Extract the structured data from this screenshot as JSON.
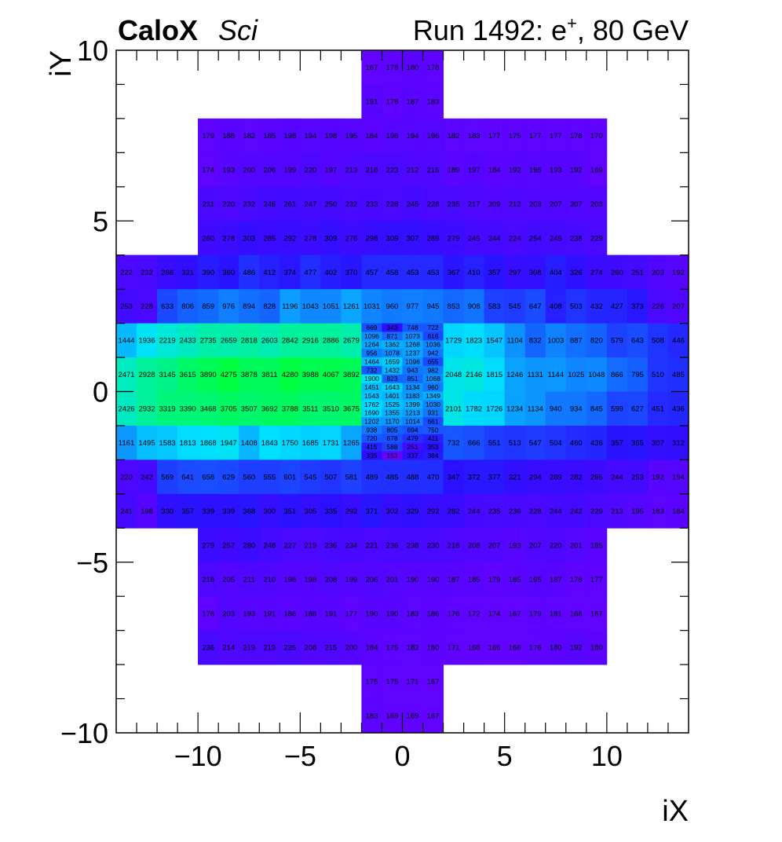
{
  "chart_data": {
    "type": "heatmap",
    "title_bold": "CaloX",
    "title_italic": "Sci",
    "run_prefix": "Run 1492: e",
    "run_superscript": "+",
    "run_suffix": ", 80 GeV",
    "xlabel": "iX",
    "ylabel": "iY",
    "xlim": [
      -14,
      14
    ],
    "ylim": [
      -10,
      10
    ],
    "xticks": [
      -10,
      -5,
      0,
      5,
      10
    ],
    "yticks": [
      -10,
      -5,
      0,
      5,
      10
    ],
    "xticklabels": [
      "−10",
      "−5",
      "0",
      "5",
      "10"
    ],
    "yticklabels": [
      "−10",
      "−5",
      "0",
      "5",
      "10"
    ],
    "colorscale": [
      "#6a00ff",
      "#2a10ff",
      "#1560ff",
      "#00e0ff",
      "#00ff40"
    ],
    "zlim": [
      150,
      4300
    ],
    "regions": [
      {
        "name": "top-arm",
        "x": [
          -2,
          2
        ],
        "y": [
          8,
          10
        ]
      },
      {
        "name": "bottom-arm",
        "x": [
          -2,
          2
        ],
        "y": [
          -10,
          -8
        ]
      },
      {
        "name": "upper-block",
        "x": [
          -10,
          10
        ],
        "y": [
          4,
          8
        ]
      },
      {
        "name": "lower-block",
        "x": [
          -10,
          10
        ],
        "y": [
          -8,
          -4
        ]
      },
      {
        "name": "wide-band",
        "x": [
          -14,
          14
        ],
        "y": [
          -4,
          4
        ]
      }
    ],
    "grids": [
      {
        "x0": -2,
        "y_top": 10,
        "ncols": 4,
        "nrows": 2,
        "col_w": 1,
        "row_h": 1,
        "values": [
          [
            167,
            178,
            180,
            178
          ],
          [
            191,
            178,
            187,
            183
          ]
        ]
      },
      {
        "x0": -10,
        "y_top": 8,
        "ncols": 20,
        "nrows": 4,
        "col_w": 1,
        "row_h": 1,
        "values": [
          [
            179,
            188,
            182,
            185,
            198,
            194,
            198,
            195,
            184,
            196,
            194,
            196,
            182,
            183,
            177,
            175,
            177,
            177,
            178,
            170
          ],
          [
            174,
            193,
            200,
            206,
            199,
            220,
            197,
            213,
            218,
            223,
            212,
            215,
            189,
            197,
            184,
            192,
            195,
            193,
            192,
            169
          ],
          [
            231,
            220,
            232,
            246,
            261,
            247,
            250,
            232,
            233,
            228,
            245,
            228,
            235,
            217,
            209,
            212,
            203,
            207,
            207,
            203
          ],
          [
            260,
            278,
            303,
            285,
            292,
            278,
            309,
            276,
            298,
            309,
            307,
            289,
            279,
            245,
            244,
            224,
            254,
            245,
            238,
            229
          ]
        ]
      },
      {
        "x0": -14,
        "y_top": 4,
        "ncols": 12,
        "nrows": 8,
        "col_w": 1,
        "row_h": 1,
        "values": [
          [
            222,
            232,
            286,
            321,
            390,
            360,
            486,
            412,
            374,
            477,
            402,
            370
          ],
          [
            253,
            228,
            633,
            806,
            859,
            976,
            894,
            828,
            1196,
            1043,
            1051,
            1261
          ],
          [
            1444,
            1936,
            2219,
            2433,
            2735,
            2659,
            2818,
            2603,
            2842,
            2916,
            2886,
            2679
          ],
          [
            2471,
            2928,
            3145,
            3615,
            3890,
            4275,
            3878,
            3811,
            4280,
            3988,
            4067,
            3892
          ],
          [
            2426,
            2932,
            3319,
            3390,
            3468,
            3705,
            3507,
            3692,
            3788,
            3511,
            3510,
            3675
          ],
          [
            1161,
            1495,
            1583,
            1813,
            1868,
            1947,
            1408,
            1843,
            1750,
            1685,
            1731,
            1265
          ],
          [
            220,
            242,
            569,
            641,
            658,
            629,
            560,
            555,
            601,
            545,
            507,
            581
          ],
          [
            241,
            198,
            330,
            357,
            339,
            339,
            368,
            300,
            351,
            305,
            335,
            292
          ]
        ]
      },
      {
        "x0": -2,
        "y_top": 4,
        "ncols": 4,
        "nrows": 2,
        "col_w": 1,
        "row_h": 1,
        "values": [
          [
            457,
            458,
            453,
            453
          ],
          [
            1031,
            960,
            977,
            945
          ]
        ]
      },
      {
        "x0": -2,
        "y_top": 2,
        "ncols": 4,
        "nrows": 16,
        "col_w": 1,
        "row_h": 0.25,
        "values": [
          [
            669,
            343,
            748,
            722
          ],
          [
            1096,
            871,
            1073,
            616
          ],
          [
            1264,
            1362,
            1268,
            1036
          ],
          [
            956,
            1078,
            1237,
            942
          ],
          [
            1464,
            1659,
            1096,
            655
          ],
          [
            732,
            1432,
            943,
            982
          ],
          [
            1900,
            823,
            851,
            1068
          ],
          [
            1451,
            1643,
            1134,
            960
          ],
          [
            1543,
            1401,
            1183,
            1349
          ],
          [
            1762,
            1525,
            1399,
            1030
          ],
          [
            1690,
            1355,
            1213,
            931
          ],
          [
            1202,
            1170,
            1014,
            661
          ],
          [
            938,
            805,
            694,
            750
          ],
          [
            720,
            678,
            479,
            411
          ],
          [
            415,
            588,
            251,
            353
          ],
          [
            335,
            153,
            337,
            384
          ]
        ]
      },
      {
        "x0": -2,
        "y_top": -2,
        "ncols": 4,
        "nrows": 2,
        "col_w": 1,
        "row_h": 1,
        "values": [
          [
            489,
            485,
            488,
            470
          ],
          [
            371,
            302,
            329,
            292
          ]
        ]
      },
      {
        "x0": 2,
        "y_top": 4,
        "ncols": 12,
        "nrows": 8,
        "col_w": 1,
        "row_h": 1,
        "values": [
          [
            367,
            410,
            357,
            297,
            308,
            404,
            326,
            274,
            260,
            251,
            203,
            192
          ],
          [
            853,
            908,
            583,
            545,
            647,
            408,
            503,
            432,
            427,
            373,
            226,
            207
          ],
          [
            1729,
            1823,
            1547,
            1104,
            832,
            1003,
            887,
            820,
            579,
            643,
            508,
            446
          ],
          [
            2048,
            2146,
            1815,
            1246,
            1131,
            1144,
            1025,
            1048,
            866,
            795,
            510,
            485
          ],
          [
            2101,
            1782,
            1726,
            1234,
            1134,
            940,
            934,
            845,
            599,
            627,
            451,
            436
          ],
          [
            732,
            666,
            551,
            513,
            547,
            504,
            460,
            436,
            357,
            365,
            307,
            312
          ],
          [
            347,
            372,
            377,
            321,
            294,
            289,
            282,
            265,
            244,
            253,
            192,
            194
          ],
          [
            282,
            244,
            235,
            236,
            228,
            244,
            242,
            229,
            213,
            195,
            183,
            184
          ]
        ]
      },
      {
        "x0": -10,
        "y_top": -4,
        "ncols": 20,
        "nrows": 4,
        "col_w": 1,
        "row_h": 1,
        "values": [
          [
            279,
            257,
            280,
            248,
            227,
            219,
            236,
            234,
            221,
            236,
            238,
            230,
            218,
            208,
            207,
            193,
            207,
            220,
            201,
            185
          ],
          [
            218,
            205,
            211,
            210,
            198,
            198,
            208,
            199,
            206,
            201,
            190,
            190,
            187,
            185,
            179,
            185,
            195,
            187,
            178,
            177
          ],
          [
            176,
            203,
            193,
            191,
            186,
            188,
            191,
            177,
            190,
            190,
            183,
            186,
            176,
            172,
            174,
            167,
            179,
            181,
            168,
            167
          ],
          [
            236,
            214,
            219,
            219,
            225,
            208,
            215,
            200,
            184,
            175,
            183,
            180,
            171,
            168,
            166,
            166,
            176,
            180,
            192,
            180
          ]
        ]
      },
      {
        "x0": -2,
        "y_top": -8,
        "ncols": 4,
        "nrows": 2,
        "col_w": 1,
        "row_h": 1,
        "values": [
          [
            175,
            175,
            171,
            167
          ],
          [
            183,
            169,
            169,
            167
          ]
        ]
      }
    ]
  }
}
